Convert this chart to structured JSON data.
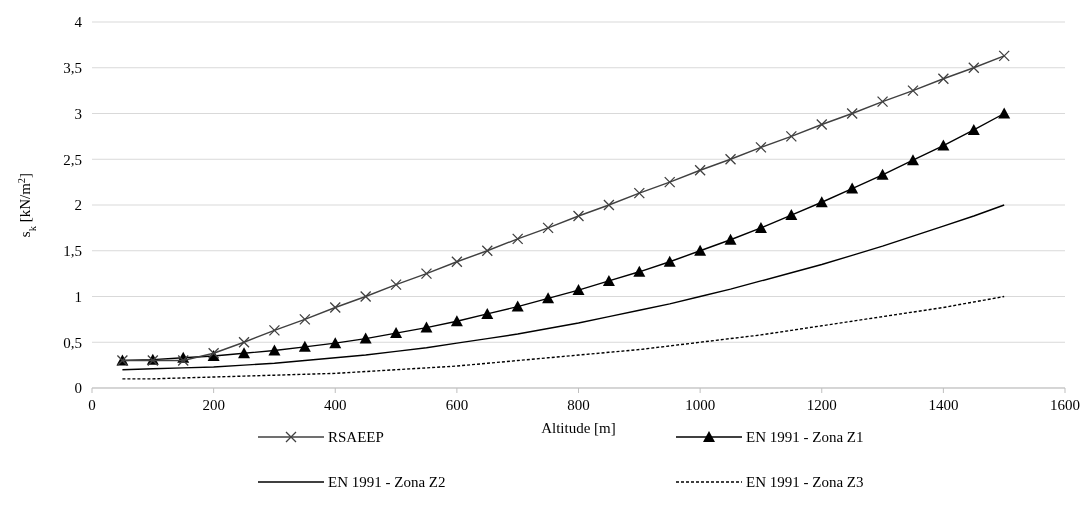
{
  "chart_data": {
    "type": "line",
    "xlabel": "Altitude [m]",
    "ylabel": "s$_{k}$ [kN/m$^{2}$]",
    "x": [
      50,
      100,
      150,
      200,
      250,
      300,
      350,
      400,
      450,
      500,
      550,
      600,
      650,
      700,
      750,
      800,
      850,
      900,
      950,
      1000,
      1050,
      1100,
      1150,
      1200,
      1250,
      1300,
      1350,
      1400,
      1450,
      1500
    ],
    "xlim": [
      0,
      1600
    ],
    "xticks": [
      0,
      200,
      400,
      600,
      800,
      1000,
      1200,
      1400,
      1600
    ],
    "ylim": [
      0,
      4
    ],
    "yticks": [
      0,
      {
        "value": 0.5,
        "label": "0,5"
      },
      1,
      {
        "value": 1.5,
        "label": "1,5"
      },
      2,
      {
        "value": 2.5,
        "label": "2,5"
      },
      3,
      {
        "value": 3.5,
        "label": "3,5"
      },
      4
    ],
    "grid": "y",
    "legend": "bottom",
    "series": [
      {
        "name": "RSAEEP",
        "color": "#404040",
        "marker": "cross",
        "line_style": "solid",
        "values": [
          0.3,
          0.3,
          0.3,
          0.38,
          0.5,
          0.63,
          0.75,
          0.88,
          1,
          1.13,
          1.25,
          1.38,
          1.5,
          1.63,
          1.75,
          1.88,
          2,
          2.13,
          2.25,
          2.38,
          2.5,
          2.63,
          2.75,
          2.88,
          3,
          3.13,
          3.25,
          3.38,
          3.5,
          3.63
        ]
      },
      {
        "name": "EN 1991 - Zona Z1",
        "color": "#000000",
        "marker": "triangle",
        "line_style": "solid",
        "values": [
          0.3,
          0.31,
          0.33,
          0.35,
          0.38,
          0.41,
          0.45,
          0.49,
          0.54,
          0.6,
          0.66,
          0.73,
          0.81,
          0.89,
          0.98,
          1.07,
          1.17,
          1.27,
          1.38,
          1.5,
          1.62,
          1.75,
          1.89,
          2.03,
          2.18,
          2.33,
          2.49,
          2.65,
          2.82,
          3
        ]
      },
      {
        "name": "EN 1991 - Zona Z2",
        "color": "#000000",
        "marker": "none",
        "line_style": "solid",
        "values": [
          0.2,
          0.21,
          0.22,
          0.23,
          0.25,
          0.27,
          0.3,
          0.33,
          0.36,
          0.4,
          0.44,
          0.49,
          0.54,
          0.59,
          0.65,
          0.71,
          0.78,
          0.85,
          0.92,
          1,
          1.08,
          1.17,
          1.26,
          1.35,
          1.45,
          1.55,
          1.66,
          1.77,
          1.88,
          2
        ]
      },
      {
        "name": "EN 1991 - Zona Z3",
        "color": "#000000",
        "marker": "none",
        "line_style": "dashed",
        "values": [
          0.1,
          0.1,
          0.11,
          0.12,
          0.13,
          0.14,
          0.15,
          0.16,
          0.18,
          0.2,
          0.22,
          0.24,
          0.27,
          0.3,
          0.33,
          0.36,
          0.39,
          0.42,
          0.46,
          0.5,
          0.54,
          0.58,
          0.63,
          0.68,
          0.73,
          0.78,
          0.83,
          0.88,
          0.94,
          1
        ]
      }
    ]
  }
}
